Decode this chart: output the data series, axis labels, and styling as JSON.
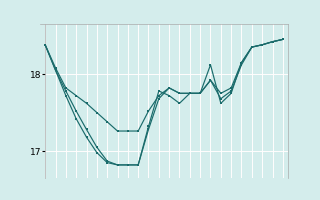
{
  "bg_color": "#d4edec",
  "line_color": "#1a6b6b",
  "grid_color": "#ffffff",
  "red_color": "#ff0000",
  "ylim": [
    16.65,
    18.65
  ],
  "xlim": [
    -0.5,
    23.5
  ],
  "yticks": [
    17.0,
    18.0
  ],
  "x_values": [
    0,
    1,
    2,
    3,
    4,
    5,
    6,
    7,
    8,
    9,
    10,
    11,
    12,
    13,
    14,
    15,
    16,
    17,
    18,
    19,
    20,
    21,
    22,
    23
  ],
  "y_line1": [
    18.38,
    18.08,
    17.82,
    17.72,
    17.62,
    17.5,
    17.38,
    17.26,
    17.26,
    17.26,
    17.52,
    17.72,
    17.82,
    17.75,
    17.75,
    17.75,
    17.92,
    17.75,
    17.82,
    18.15,
    18.35,
    18.38,
    18.42,
    18.45
  ],
  "y_line2": [
    18.38,
    18.05,
    17.78,
    17.52,
    17.28,
    17.05,
    16.87,
    16.82,
    16.82,
    16.82,
    17.28,
    17.68,
    17.82,
    17.75,
    17.75,
    17.75,
    17.92,
    17.68,
    17.78,
    18.12,
    18.35,
    18.38,
    18.42,
    18.45
  ],
  "y_line3": [
    18.38,
    18.05,
    17.72,
    17.42,
    17.18,
    16.98,
    16.85,
    16.82,
    16.82,
    16.82,
    17.32,
    17.78,
    17.72,
    17.62,
    17.75,
    17.75,
    18.12,
    17.62,
    17.75,
    18.15,
    18.35,
    18.38,
    18.42,
    18.45
  ],
  "figsize": [
    3.2,
    2.0
  ],
  "dpi": 100
}
